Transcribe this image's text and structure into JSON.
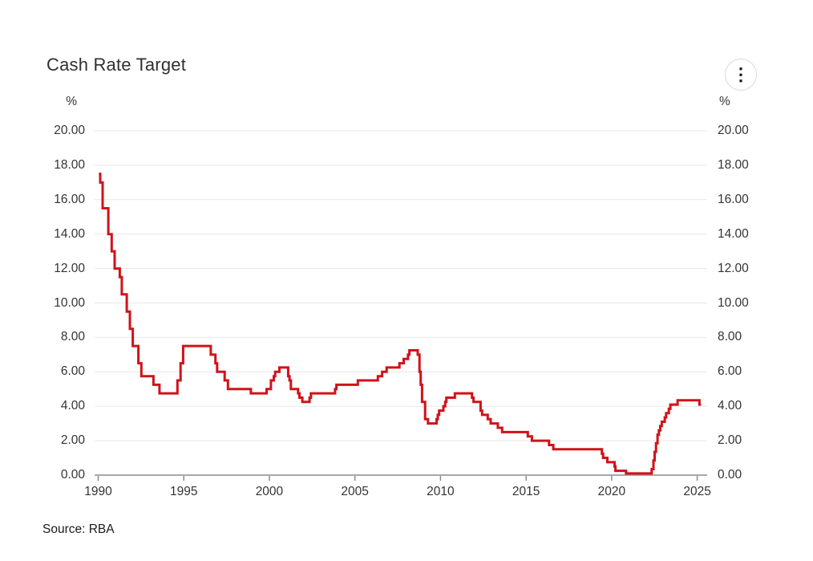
{
  "header": {
    "title": "Cash Rate Target"
  },
  "icons": {
    "kebab_menu": "⋮"
  },
  "source_note": "Source: RBA",
  "chart_data": {
    "type": "line",
    "title": "Cash Rate Target",
    "xlabel": "",
    "ylabel_left": "%",
    "ylabel_right": "%",
    "grid": true,
    "legend": "none",
    "x_range": [
      1989.79,
      2025.58
    ],
    "y_range": [
      0,
      20
    ],
    "x_ticks": [
      "1990",
      "1995",
      "2000",
      "2005",
      "2010",
      "2015",
      "2020",
      "2025"
    ],
    "y_ticks": [
      "20.00",
      "18.00",
      "16.00",
      "14.00",
      "12.00",
      "10.00",
      "8.00",
      "6.00",
      "4.00",
      "2.00",
      "0.00"
    ],
    "colors": {
      "line": "#d0121a",
      "grid": "#e7e7e7",
      "axis": "#8c8c8c",
      "text": "#333333"
    },
    "series": [
      {
        "name": "Cash Rate Target",
        "color": "#d0121a",
        "interpolation": "step-after",
        "end_x": 2025.22,
        "points": [
          [
            1990.04,
            17.5
          ],
          [
            1990.12,
            17.0
          ],
          [
            1990.26,
            15.5
          ],
          [
            1990.59,
            14.0
          ],
          [
            1990.79,
            13.0
          ],
          [
            1990.96,
            12.0
          ],
          [
            1991.26,
            11.5
          ],
          [
            1991.38,
            10.5
          ],
          [
            1991.67,
            9.5
          ],
          [
            1991.85,
            8.5
          ],
          [
            1992.02,
            7.5
          ],
          [
            1992.35,
            6.5
          ],
          [
            1992.52,
            5.75
          ],
          [
            1993.23,
            5.25
          ],
          [
            1993.58,
            4.75
          ],
          [
            1994.63,
            5.5
          ],
          [
            1994.81,
            6.5
          ],
          [
            1994.96,
            7.5
          ],
          [
            1996.58,
            7.0
          ],
          [
            1996.85,
            6.5
          ],
          [
            1996.95,
            6.0
          ],
          [
            1997.39,
            5.5
          ],
          [
            1997.58,
            5.0
          ],
          [
            1998.92,
            4.75
          ],
          [
            1999.84,
            5.0
          ],
          [
            2000.09,
            5.5
          ],
          [
            2000.26,
            5.75
          ],
          [
            2000.34,
            6.0
          ],
          [
            2000.59,
            6.25
          ],
          [
            2001.1,
            5.75
          ],
          [
            2001.18,
            5.5
          ],
          [
            2001.26,
            5.0
          ],
          [
            2001.68,
            4.75
          ],
          [
            2001.76,
            4.5
          ],
          [
            2001.93,
            4.25
          ],
          [
            2002.35,
            4.5
          ],
          [
            2002.43,
            4.75
          ],
          [
            2003.84,
            5.0
          ],
          [
            2003.92,
            5.25
          ],
          [
            2005.17,
            5.5
          ],
          [
            2006.34,
            5.75
          ],
          [
            2006.59,
            6.0
          ],
          [
            2006.85,
            6.25
          ],
          [
            2007.6,
            6.5
          ],
          [
            2007.85,
            6.75
          ],
          [
            2008.1,
            7.0
          ],
          [
            2008.18,
            7.25
          ],
          [
            2008.67,
            7.0
          ],
          [
            2008.77,
            6.0
          ],
          [
            2008.84,
            5.25
          ],
          [
            2008.92,
            4.25
          ],
          [
            2009.1,
            3.25
          ],
          [
            2009.27,
            3.0
          ],
          [
            2009.77,
            3.25
          ],
          [
            2009.84,
            3.5
          ],
          [
            2009.92,
            3.75
          ],
          [
            2010.17,
            4.0
          ],
          [
            2010.27,
            4.25
          ],
          [
            2010.34,
            4.5
          ],
          [
            2010.84,
            4.75
          ],
          [
            2011.84,
            4.5
          ],
          [
            2011.93,
            4.25
          ],
          [
            2012.34,
            3.75
          ],
          [
            2012.43,
            3.5
          ],
          [
            2012.76,
            3.25
          ],
          [
            2012.93,
            3.0
          ],
          [
            2013.35,
            2.75
          ],
          [
            2013.6,
            2.5
          ],
          [
            2015.1,
            2.25
          ],
          [
            2015.34,
            2.0
          ],
          [
            2016.34,
            1.75
          ],
          [
            2016.59,
            1.5
          ],
          [
            2019.43,
            1.25
          ],
          [
            2019.5,
            1.0
          ],
          [
            2019.75,
            0.75
          ],
          [
            2020.17,
            0.5
          ],
          [
            2020.22,
            0.25
          ],
          [
            2020.84,
            0.1
          ],
          [
            2022.34,
            0.35
          ],
          [
            2022.44,
            0.85
          ],
          [
            2022.51,
            1.35
          ],
          [
            2022.59,
            1.85
          ],
          [
            2022.68,
            2.35
          ],
          [
            2022.76,
            2.6
          ],
          [
            2022.84,
            2.85
          ],
          [
            2022.93,
            3.1
          ],
          [
            2023.1,
            3.35
          ],
          [
            2023.18,
            3.6
          ],
          [
            2023.34,
            3.85
          ],
          [
            2023.43,
            4.1
          ],
          [
            2023.85,
            4.35
          ],
          [
            2025.13,
            4.1
          ]
        ]
      }
    ]
  }
}
